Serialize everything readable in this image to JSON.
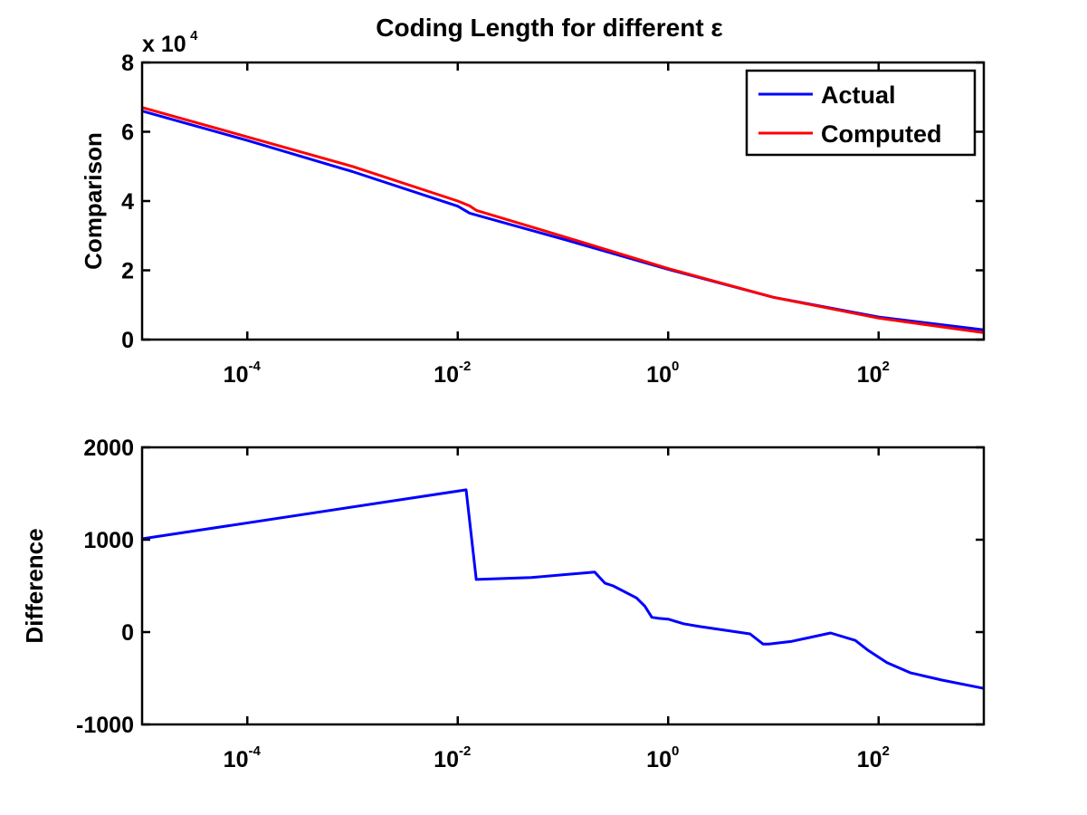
{
  "chart_data": [
    {
      "type": "line",
      "title": "Coding Length for different ε",
      "xlabel": "",
      "ylabel": "Comparison",
      "x_scale": "log",
      "xlim": [
        1e-05,
        1000
      ],
      "ylim": [
        0,
        80000
      ],
      "y_multiplier_label": {
        "base": "x 10",
        "exp": "4"
      },
      "x_ticks": [
        {
          "value": 0.0001,
          "base": "10",
          "exp": "-4"
        },
        {
          "value": 0.01,
          "base": "10",
          "exp": "-2"
        },
        {
          "value": 1,
          "base": "10",
          "exp": "0"
        },
        {
          "value": 100,
          "base": "10",
          "exp": "2"
        }
      ],
      "y_ticks": [
        {
          "value": 0,
          "label": "0"
        },
        {
          "value": 20000,
          "label": "2"
        },
        {
          "value": 40000,
          "label": "4"
        },
        {
          "value": 60000,
          "label": "6"
        },
        {
          "value": 80000,
          "label": "8"
        }
      ],
      "legend": {
        "position": "top-right"
      },
      "series": [
        {
          "name": "Actual",
          "color": "#0000ff",
          "x": [
            1e-05,
            0.0001,
            0.001,
            0.01,
            0.013,
            0.1,
            1,
            10,
            100,
            1000
          ],
          "y": [
            66000,
            57500,
            48500,
            38500,
            36500,
            29000,
            20300,
            12200,
            6500,
            2800
          ]
        },
        {
          "name": "Computed",
          "color": "#ff0000",
          "x": [
            1e-05,
            0.0001,
            0.001,
            0.01,
            0.013,
            0.015,
            0.1,
            1,
            10,
            100,
            1000
          ],
          "y": [
            67000,
            58500,
            50000,
            40000,
            38600,
            37300,
            29800,
            20500,
            12200,
            6200,
            2000
          ]
        }
      ]
    },
    {
      "type": "line",
      "title": "",
      "xlabel": "",
      "ylabel": "Difference",
      "x_scale": "log",
      "xlim": [
        1e-05,
        1000
      ],
      "ylim": [
        -1000,
        2000
      ],
      "x_ticks": [
        {
          "value": 0.0001,
          "base": "10",
          "exp": "-4"
        },
        {
          "value": 0.01,
          "base": "10",
          "exp": "-2"
        },
        {
          "value": 1,
          "base": "10",
          "exp": "0"
        },
        {
          "value": 100,
          "base": "10",
          "exp": "2"
        }
      ],
      "y_ticks": [
        {
          "value": -1000,
          "label": "-1000"
        },
        {
          "value": 0,
          "label": "0"
        },
        {
          "value": 1000,
          "label": "1000"
        },
        {
          "value": 2000,
          "label": "2000"
        }
      ],
      "series": [
        {
          "color": "#0000ff",
          "x": [
            1e-05,
            0.012,
            0.015,
            0.05,
            0.2,
            0.25,
            0.3,
            0.5,
            0.6,
            0.7,
            0.8,
            1,
            1.4,
            2,
            6,
            8,
            9,
            15,
            35,
            60,
            80,
            120,
            200,
            400,
            1000
          ],
          "y": [
            1010,
            1540,
            570,
            590,
            650,
            530,
            500,
            370,
            280,
            160,
            150,
            140,
            90,
            60,
            -20,
            -130,
            -130,
            -100,
            -10,
            -90,
            -200,
            -330,
            -440,
            -520,
            -610
          ]
        }
      ]
    }
  ]
}
